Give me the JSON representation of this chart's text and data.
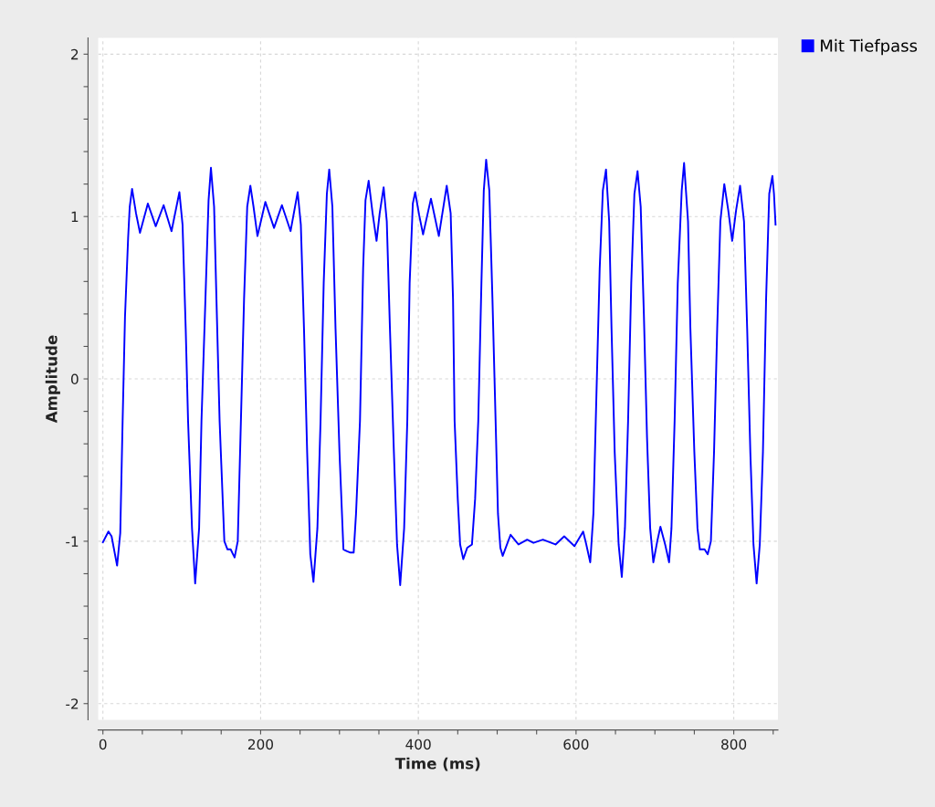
{
  "chart_data": {
    "type": "line",
    "xlabel": "Time (ms)",
    "ylabel": "Amplitude",
    "xlim": [
      -6,
      856
    ],
    "ylim": [
      -2.1,
      2.1
    ],
    "xticks": [
      0,
      {
        "value": 50,
        "label": null
      },
      {
        "value": 100,
        "label": null
      },
      {
        "value": 150,
        "label": null
      },
      200,
      {
        "value": 250,
        "label": null
      },
      {
        "value": 300,
        "label": null
      },
      {
        "value": 350,
        "label": null
      },
      400,
      {
        "value": 450,
        "label": null
      },
      {
        "value": 500,
        "label": null
      },
      {
        "value": 550,
        "label": null
      },
      600,
      {
        "value": 650,
        "label": null
      },
      {
        "value": 700,
        "label": null
      },
      {
        "value": 750,
        "label": null
      },
      800,
      {
        "value": 850,
        "label": null
      }
    ],
    "yticks": [
      -2,
      {
        "value": -1.8,
        "label": null
      },
      {
        "value": -1.6,
        "label": null
      },
      {
        "value": -1.4,
        "label": null
      },
      {
        "value": -1.2,
        "label": null
      },
      -1,
      {
        "value": -0.8,
        "label": null
      },
      {
        "value": -0.6,
        "label": null
      },
      {
        "value": -0.4,
        "label": null
      },
      {
        "value": -0.2,
        "label": null
      },
      0,
      {
        "value": 0.2,
        "label": null
      },
      {
        "value": 0.4,
        "label": null
      },
      {
        "value": 0.6,
        "label": null
      },
      {
        "value": 0.8,
        "label": null
      },
      1,
      {
        "value": 1.2,
        "label": null
      },
      {
        "value": 1.4,
        "label": null
      },
      {
        "value": 1.6,
        "label": null
      },
      {
        "value": 1.8,
        "label": null
      },
      2
    ],
    "grid": true,
    "legend": "top right",
    "marker": "none",
    "line_style": "solid",
    "series": [
      {
        "name": "Mit Tiefpass",
        "color": "#0000ff",
        "x": [
          0,
          7,
          11,
          18,
          22,
          25,
          28,
          32,
          34,
          37,
          42,
          47,
          57,
          67,
          77,
          87,
          97,
          101,
          105,
          108,
          113,
          117,
          122,
          125,
          130,
          134,
          137,
          141,
          144,
          148,
          154,
          158,
          162,
          167,
          171,
          175,
          179,
          183,
          187,
          191,
          196,
          206,
          217,
          227,
          238,
          247,
          251,
          255,
          259,
          263,
          267,
          272,
          276,
          280,
          284,
          287,
          291,
          295,
          300,
          305,
          309,
          314,
          318,
          321,
          326,
          330,
          333,
          337,
          342,
          347,
          351,
          356,
          360,
          364,
          369,
          373,
          377,
          382,
          386,
          389,
          393,
          396,
          401,
          406,
          416,
          426,
          436,
          441,
          444,
          446,
          450,
          453,
          457,
          462,
          468,
          472,
          476,
          480,
          483,
          486,
          490,
          494,
          498,
          501,
          504,
          507,
          517,
          527,
          538,
          546,
          558,
          574,
          585,
          598,
          609,
          613,
          618,
          622,
          625,
          630,
          634,
          638,
          642,
          645,
          649,
          654,
          658,
          662,
          666,
          670,
          674,
          678,
          682,
          686,
          690,
          694,
          698,
          703,
          707,
          713,
          718,
          721,
          725,
          729,
          734,
          737,
          742,
          745,
          750,
          754,
          757,
          763,
          767,
          771,
          775,
          779,
          783,
          788,
          793,
          798,
          803,
          808,
          813,
          817,
          821,
          825,
          829,
          833,
          837,
          841,
          845,
          849,
          851,
          853
        ],
        "values": [
          -1.006,
          -0.94,
          -0.97,
          -1.15,
          -0.95,
          -0.26,
          0.38,
          0.87,
          1.06,
          1.17,
          1.02,
          0.9,
          1.08,
          0.94,
          1.07,
          0.91,
          1.15,
          0.95,
          0.31,
          -0.26,
          -0.92,
          -1.26,
          -0.92,
          -0.26,
          0.49,
          1.1,
          1.3,
          1.06,
          0.49,
          -0.26,
          -1.0,
          -1.05,
          -1.05,
          -1.1,
          -1.0,
          -0.26,
          0.49,
          1.06,
          1.19,
          1.06,
          0.88,
          1.09,
          0.93,
          1.07,
          0.91,
          1.15,
          0.95,
          0.31,
          -0.45,
          -1.08,
          -1.25,
          -0.92,
          -0.26,
          0.59,
          1.14,
          1.29,
          1.06,
          0.31,
          -0.45,
          -1.05,
          -1.06,
          -1.07,
          -1.07,
          -0.83,
          -0.26,
          0.68,
          1.1,
          1.22,
          1.02,
          0.85,
          1.02,
          1.18,
          0.97,
          0.31,
          -0.45,
          -1.02,
          -1.27,
          -0.92,
          -0.26,
          0.59,
          1.08,
          1.15,
          1.01,
          0.89,
          1.11,
          0.88,
          1.19,
          1.02,
          0.49,
          -0.26,
          -0.74,
          -1.02,
          -1.11,
          -1.04,
          -1.02,
          -0.74,
          -0.26,
          0.59,
          1.16,
          1.35,
          1.16,
          0.49,
          -0.26,
          -0.83,
          -1.04,
          -1.09,
          -0.96,
          -1.02,
          -0.99,
          -1.01,
          -0.99,
          -1.02,
          -0.97,
          -1.03,
          -0.94,
          -1.02,
          -1.13,
          -0.83,
          -0.26,
          0.68,
          1.16,
          1.29,
          0.97,
          0.31,
          -0.45,
          -1.02,
          -1.22,
          -0.92,
          -0.26,
          0.59,
          1.14,
          1.28,
          1.06,
          0.4,
          -0.36,
          -0.92,
          -1.13,
          -1.0,
          -0.91,
          -1.02,
          -1.13,
          -0.92,
          -0.26,
          0.59,
          1.16,
          1.33,
          0.97,
          0.31,
          -0.45,
          -0.92,
          -1.05,
          -1.05,
          -1.08,
          -1.0,
          -0.45,
          0.31,
          0.97,
          1.2,
          1.04,
          0.85,
          1.04,
          1.19,
          0.97,
          0.31,
          -0.45,
          -1.02,
          -1.26,
          -1.02,
          -0.45,
          0.49,
          1.14,
          1.25,
          1.14,
          0.95
        ]
      }
    ]
  }
}
